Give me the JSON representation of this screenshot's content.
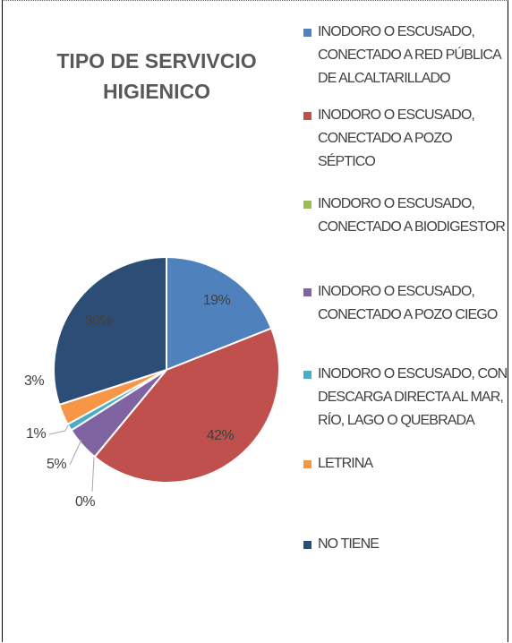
{
  "chart_data": {
    "type": "pie",
    "title": "TIPO DE SERVIVCIO HIGIENICO",
    "categories": [
      "INODORO O ESCUSADO, CONECTADO A RED PÚBLICA DE ALCALTARILLADO",
      "INODORO O ESCUSADO, CONECTADO A POZO SÉPTICO",
      "INODORO O ESCUSADO, CONECTADO A BIODIGESTOR",
      "INODORO O ESCUSADO, CONECTADO A POZO CIEGO",
      "INODORO O ESCUSADO, CON DESCARGA DIRECTA AL MAR, RÍO, LAGO O QUEBRADA",
      "LETRINA",
      "NO TIENE"
    ],
    "values": [
      19,
      42,
      0,
      5,
      1,
      3,
      30
    ],
    "value_labels": [
      "19%",
      "42%",
      "0%",
      "5%",
      "1%",
      "3%",
      "30%"
    ],
    "colors": [
      "#4f81bd",
      "#c0504d",
      "#9bbb59",
      "#8064a2",
      "#4bacc6",
      "#f79646",
      "#2c4d75"
    ],
    "legend": "right"
  }
}
